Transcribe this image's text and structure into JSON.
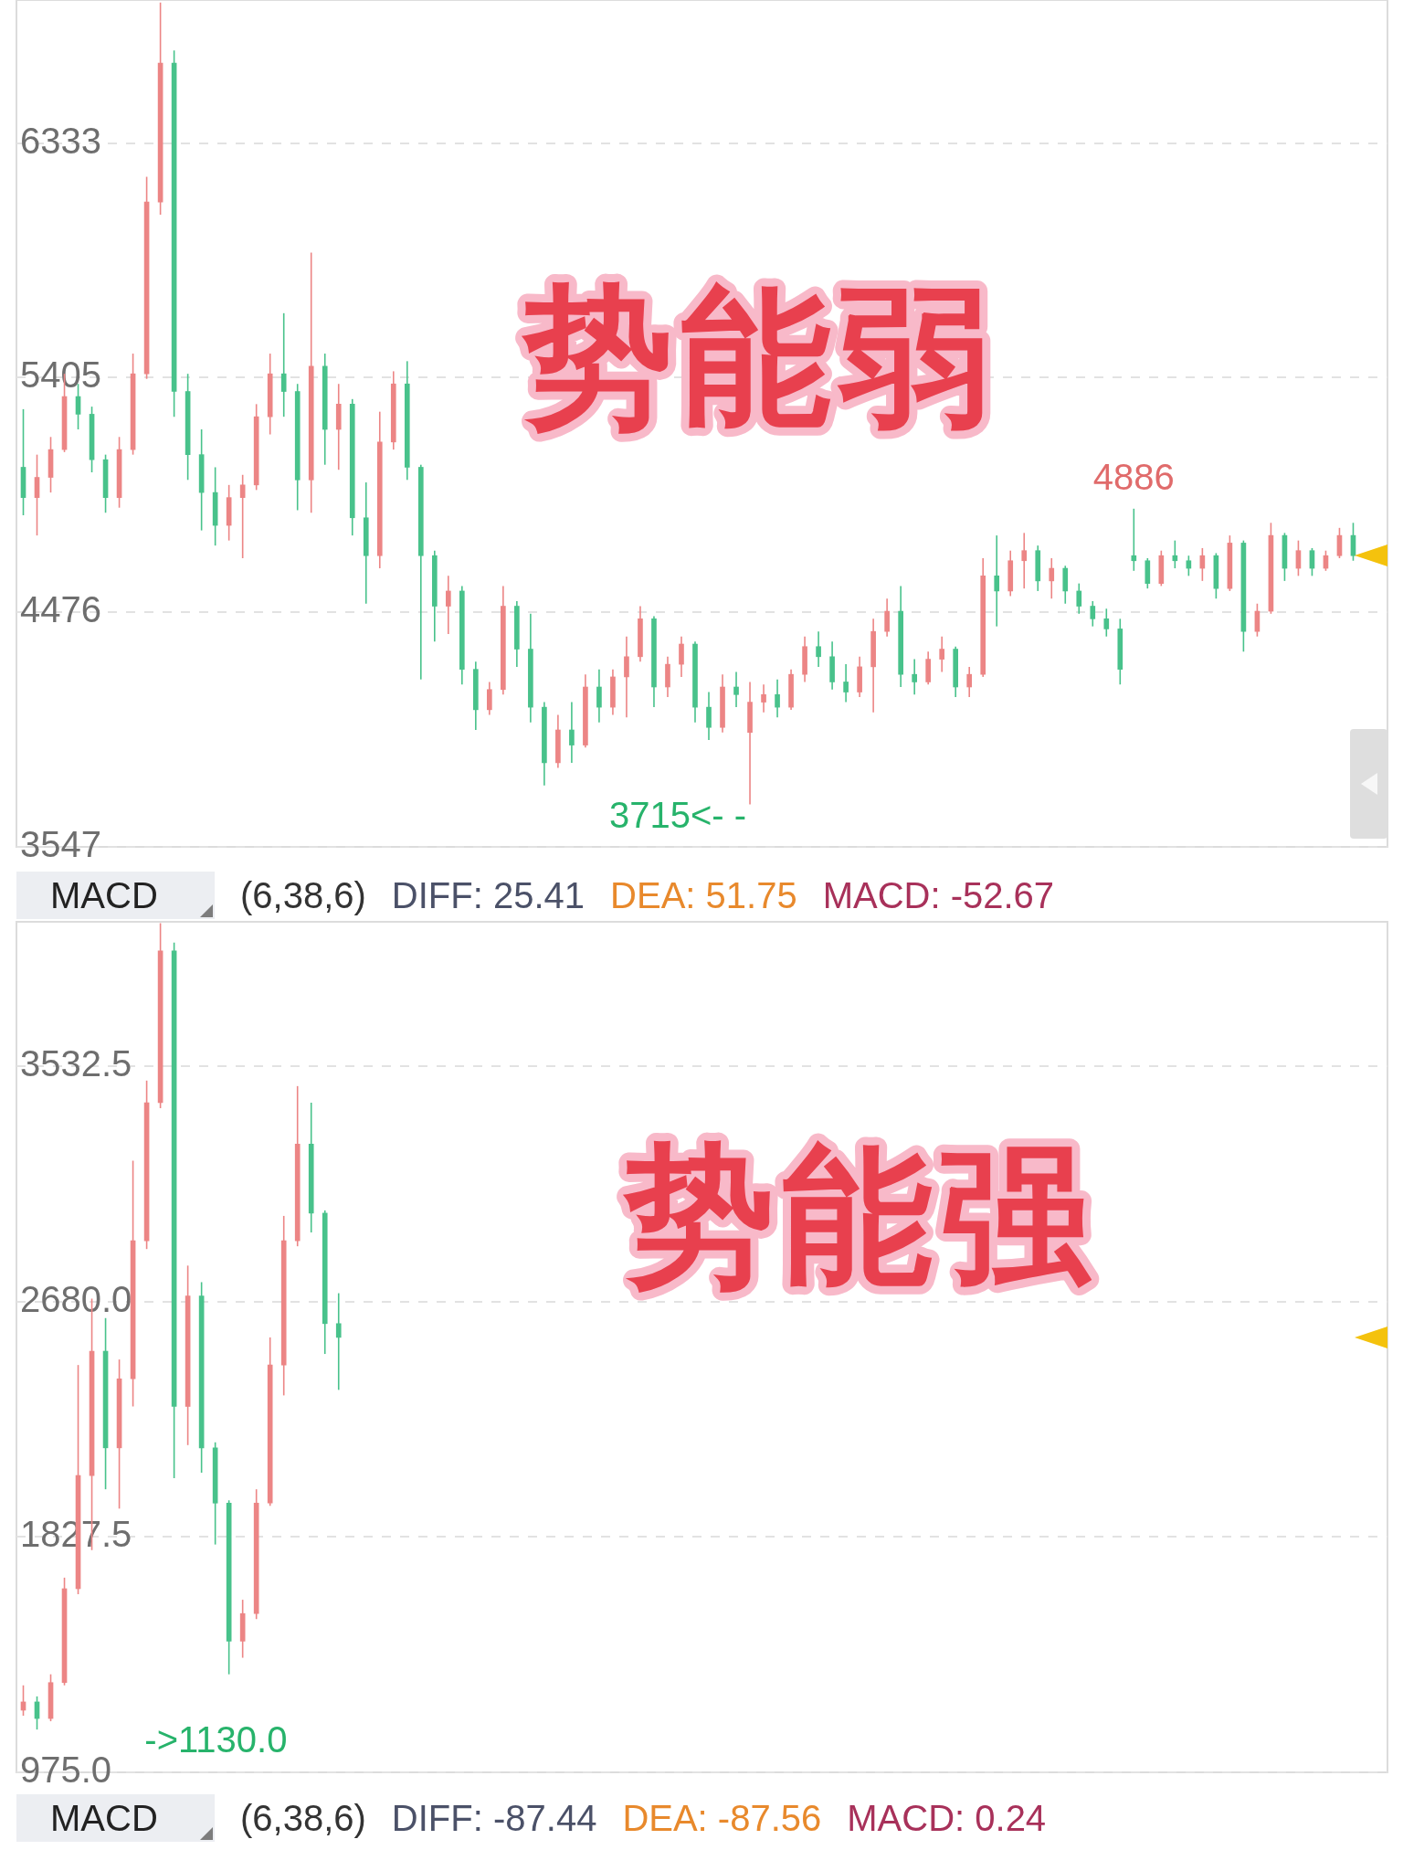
{
  "chart_data": [
    {
      "type": "candlestick",
      "title": "势能弱",
      "categories": [
        null,
        null,
        null,
        null,
        null,
        null,
        null,
        null,
        null,
        null,
        null,
        null,
        null,
        null,
        null,
        null,
        null,
        null,
        null,
        null,
        null,
        null,
        null,
        null,
        null,
        null,
        null,
        null,
        null,
        null,
        null,
        null,
        null,
        null,
        null,
        null,
        null,
        null,
        null,
        null,
        null,
        null,
        null,
        null,
        null,
        null,
        null,
        null,
        null,
        null,
        null,
        null,
        null,
        null,
        null,
        null,
        null,
        null,
        null,
        null,
        null,
        null,
        null,
        null,
        null,
        null,
        null,
        null,
        null,
        null,
        null,
        null,
        null,
        null,
        null,
        null,
        null,
        null,
        null,
        null,
        null,
        null,
        null,
        null,
        null,
        null,
        null,
        null,
        null,
        null,
        null,
        null,
        null,
        null,
        null,
        null,
        null,
        null,
        null,
        null
      ],
      "ohlc": [
        [
          5050,
          5280,
          4860,
          4930
        ],
        [
          4930,
          5100,
          4780,
          5010
        ],
        [
          5010,
          5170,
          4950,
          5120
        ],
        [
          5120,
          5420,
          5110,
          5330
        ],
        [
          5330,
          5380,
          5200,
          5260
        ],
        [
          5260,
          5290,
          5030,
          5080
        ],
        [
          5080,
          5100,
          4870,
          4930
        ],
        [
          4930,
          5170,
          4890,
          5120
        ],
        [
          5120,
          5500,
          5100,
          5420
        ],
        [
          5420,
          6200,
          5400,
          6100
        ],
        [
          6100,
          6890,
          6050,
          6650
        ],
        [
          6650,
          6700,
          5250,
          5350
        ],
        [
          5350,
          5420,
          5000,
          5100
        ],
        [
          5100,
          5200,
          4800,
          4950
        ],
        [
          4950,
          5050,
          4740,
          4820
        ],
        [
          4820,
          4980,
          4760,
          4930
        ],
        [
          4930,
          5020,
          4690,
          4980
        ],
        [
          4980,
          5300,
          4960,
          5250
        ],
        [
          5250,
          5500,
          5180,
          5420
        ],
        [
          5420,
          5660,
          5250,
          5350
        ],
        [
          5350,
          5380,
          4880,
          5000
        ],
        [
          5000,
          5900,
          4870,
          5450
        ],
        [
          5450,
          5500,
          5060,
          5200
        ],
        [
          5200,
          5380,
          5040,
          5300
        ],
        [
          5300,
          5320,
          4780,
          4850
        ],
        [
          4850,
          4990,
          4510,
          4700
        ],
        [
          4700,
          5270,
          4650,
          5150
        ],
        [
          5150,
          5430,
          5120,
          5380
        ],
        [
          5380,
          5470,
          5000,
          5050
        ],
        [
          5050,
          5060,
          4210,
          4700
        ],
        [
          4700,
          4720,
          4360,
          4500
        ],
        [
          4500,
          4620,
          4390,
          4560
        ],
        [
          4560,
          4580,
          4190,
          4250
        ],
        [
          4250,
          4280,
          4010,
          4090
        ],
        [
          4090,
          4200,
          4070,
          4170
        ],
        [
          4170,
          4580,
          4150,
          4500
        ],
        [
          4500,
          4520,
          4260,
          4330
        ],
        [
          4330,
          4470,
          4040,
          4100
        ],
        [
          4100,
          4120,
          3790,
          3880
        ],
        [
          3880,
          4070,
          3860,
          4010
        ],
        [
          4010,
          4120,
          3880,
          3950
        ],
        [
          3950,
          4230,
          3940,
          4180
        ],
        [
          4180,
          4250,
          4040,
          4100
        ],
        [
          4100,
          4250,
          4070,
          4220
        ],
        [
          4220,
          4380,
          4060,
          4300
        ],
        [
          4300,
          4500,
          4280,
          4450
        ],
        [
          4450,
          4460,
          4100,
          4180
        ],
        [
          4180,
          4300,
          4140,
          4270
        ],
        [
          4270,
          4380,
          4220,
          4350
        ],
        [
          4350,
          4360,
          4040,
          4100
        ],
        [
          4100,
          4160,
          3970,
          4020
        ],
        [
          4020,
          4230,
          4000,
          4180
        ],
        [
          4180,
          4240,
          4100,
          4150
        ],
        [
          4000,
          4200,
          3715,
          4120
        ],
        [
          4120,
          4190,
          4080,
          4150
        ],
        [
          4150,
          4210,
          4060,
          4100
        ],
        [
          4100,
          4250,
          4090,
          4230
        ],
        [
          4230,
          4380,
          4200,
          4340
        ],
        [
          4340,
          4400,
          4260,
          4300
        ],
        [
          4300,
          4360,
          4170,
          4200
        ],
        [
          4200,
          4270,
          4120,
          4160
        ],
        [
          4160,
          4300,
          4140,
          4260
        ],
        [
          4260,
          4450,
          4080,
          4400
        ],
        [
          4400,
          4530,
          4380,
          4480
        ],
        [
          4480,
          4580,
          4180,
          4230
        ],
        [
          4230,
          4290,
          4150,
          4200
        ],
        [
          4200,
          4320,
          4190,
          4290
        ],
        [
          4290,
          4380,
          4240,
          4330
        ],
        [
          4330,
          4340,
          4140,
          4180
        ],
        [
          4180,
          4260,
          4140,
          4230
        ],
        [
          4230,
          4690,
          4220,
          4620
        ],
        [
          4620,
          4780,
          4420,
          4560
        ],
        [
          4560,
          4720,
          4540,
          4680
        ],
        [
          4680,
          4790,
          4570,
          4720
        ],
        [
          4720,
          4740,
          4560,
          4600
        ],
        [
          4600,
          4690,
          4530,
          4650
        ],
        [
          4650,
          4660,
          4510,
          4560
        ],
        [
          4560,
          4590,
          4470,
          4500
        ],
        [
          4500,
          4520,
          4420,
          4450
        ],
        [
          4450,
          4490,
          4380,
          4410
        ],
        [
          4410,
          4450,
          4190,
          4250
        ],
        [
          4700,
          4886,
          4640,
          4680
        ],
        [
          4680,
          4690,
          4570,
          4590
        ],
        [
          4590,
          4720,
          4580,
          4700
        ],
        [
          4700,
          4760,
          4650,
          4680
        ],
        [
          4680,
          4700,
          4620,
          4650
        ],
        [
          4650,
          4730,
          4600,
          4700
        ],
        [
          4700,
          4710,
          4530,
          4570
        ],
        [
          4570,
          4780,
          4560,
          4750
        ],
        [
          4750,
          4760,
          4320,
          4400
        ],
        [
          4400,
          4510,
          4380,
          4480
        ],
        [
          4480,
          4830,
          4470,
          4780
        ],
        [
          4780,
          4790,
          4600,
          4650
        ],
        [
          4650,
          4760,
          4620,
          4720
        ],
        [
          4720,
          4730,
          4620,
          4650
        ],
        [
          4650,
          4720,
          4640,
          4700
        ],
        [
          4700,
          4810,
          4690,
          4780
        ],
        [
          4780,
          4830,
          4680,
          4700
        ],
        null,
        null
      ],
      "colors": [
        "#48c28b",
        "#ec8585",
        "#ec8585",
        "#ec8585",
        "#48c28b",
        "#48c28b",
        "#48c28b",
        "#ec8585",
        "#ec8585",
        "#ec8585",
        "#ec8585",
        "#48c28b",
        "#48c28b",
        "#48c28b",
        "#48c28b",
        "#ec8585",
        "#ec8585",
        "#ec8585",
        "#ec8585",
        "#48c28b",
        "#48c28b",
        "#ec8585",
        "#48c28b",
        "#ec8585",
        "#48c28b",
        "#48c28b",
        "#ec8585",
        "#ec8585",
        "#48c28b",
        "#48c28b",
        "#48c28b",
        "#ec8585",
        "#48c28b",
        "#48c28b",
        "#ec8585",
        "#ec8585",
        "#48c28b",
        "#48c28b",
        "#48c28b",
        "#ec8585",
        "#48c28b",
        "#ec8585",
        "#48c28b",
        "#ec8585",
        "#ec8585",
        "#ec8585",
        "#48c28b",
        "#ec8585",
        "#ec8585",
        "#48c28b",
        "#48c28b",
        "#ec8585",
        "#48c28b",
        "#ec8585",
        "#ec8585",
        "#48c28b",
        "#ec8585",
        "#ec8585",
        "#48c28b",
        "#48c28b",
        "#48c28b",
        "#ec8585",
        "#ec8585",
        "#ec8585",
        "#48c28b",
        "#48c28b",
        "#ec8585",
        "#ec8585",
        "#48c28b",
        "#ec8585",
        "#ec8585",
        "#48c28b",
        "#ec8585",
        "#ec8585",
        "#48c28b",
        "#ec8585",
        "#48c28b",
        "#48c28b",
        "#48c28b",
        "#48c28b",
        "#48c28b",
        "#48c28b",
        "#48c28b",
        "#ec8585",
        "#48c28b",
        "#48c28b",
        "#ec8585",
        "#48c28b",
        "#ec8585",
        "#48c28b",
        "#ec8585",
        "#ec8585",
        "#48c28b",
        "#ec8585",
        "#48c28b",
        "#ec8585",
        "#ec8585",
        "#48c28b",
        null,
        null
      ],
      "ylim": [
        3547,
        6900
      ],
      "yticks": [
        6333,
        5405,
        4476,
        3547
      ],
      "grid": "y",
      "tick_labels": "y",
      "annotations": [
        "MACD",
        "(6,38,6)",
        "DIFF: 25.41",
        "DEA: 51.75",
        "MACD: -52.67",
        {
          "text": "4886",
          "y": 4886
        },
        "3715<- -"
      ]
    },
    {
      "type": "candlestick",
      "title": "势能强",
      "categories": [
        null,
        null,
        null,
        null,
        null,
        null,
        null,
        null,
        null,
        null,
        null,
        null,
        null,
        null,
        null,
        null,
        null,
        null,
        null,
        null,
        null,
        null,
        null,
        null,
        null,
        null,
        null,
        null,
        null,
        null,
        null,
        null,
        null,
        null,
        null,
        null,
        null,
        null,
        null,
        null,
        null,
        null,
        null,
        null,
        null,
        null,
        null,
        null,
        null,
        null,
        null,
        null,
        null,
        null,
        null,
        null,
        null,
        null,
        null,
        null,
        null,
        null,
        null,
        null,
        null,
        null,
        null,
        null,
        null,
        null,
        null,
        null,
        null,
        null,
        null,
        null,
        null,
        null,
        null,
        null,
        null,
        null,
        null,
        null,
        null,
        null,
        null,
        null,
        null,
        null,
        null,
        null,
        null,
        null,
        null,
        null,
        null,
        null,
        null,
        null
      ],
      "ohlc": [
        [
          1200,
          1290,
          1180,
          1230
        ],
        [
          1230,
          1250,
          1130,
          1170
        ],
        [
          1170,
          1330,
          1160,
          1300
        ],
        [
          1300,
          1680,
          1290,
          1640
        ],
        [
          1640,
          2450,
          1620,
          2050
        ],
        [
          2050,
          2690,
          1780,
          2500
        ],
        [
          2500,
          2620,
          2000,
          2150
        ],
        [
          2150,
          2470,
          1930,
          2400
        ],
        [
          2400,
          3190,
          2300,
          2900
        ],
        [
          2900,
          3480,
          2870,
          3400
        ],
        [
          3400,
          4050,
          3380,
          3950
        ],
        [
          3950,
          3980,
          2040,
          2300
        ],
        [
          2300,
          2810,
          2160,
          2700
        ],
        [
          2700,
          2750,
          2060,
          2150
        ],
        [
          2150,
          2170,
          1800,
          1950
        ],
        [
          1950,
          1960,
          1330,
          1450
        ],
        [
          1450,
          1600,
          1390,
          1550
        ],
        [
          1550,
          2000,
          1530,
          1950
        ],
        [
          1950,
          2550,
          1940,
          2450
        ],
        [
          2450,
          2990,
          2340,
          2900
        ],
        [
          2900,
          3460,
          2880,
          3250
        ],
        [
          3250,
          3400,
          2930,
          3000
        ],
        [
          3000,
          3010,
          2490,
          2600
        ],
        [
          2600,
          2710,
          2360,
          2550
        ],
        null,
        null,
        null,
        null,
        null,
        null,
        null,
        null,
        null,
        null,
        null,
        null,
        null,
        null,
        null,
        null,
        null,
        null,
        null,
        null,
        null,
        null,
        null,
        null,
        null,
        null,
        null,
        null,
        null,
        null,
        null,
        null,
        null,
        null,
        null,
        null,
        null,
        null,
        null,
        null,
        null,
        null,
        null,
        null,
        null,
        null,
        null,
        null,
        null,
        null,
        null,
        null,
        null,
        null,
        null,
        null,
        null,
        null,
        null,
        null,
        null,
        null,
        null,
        null,
        null,
        null,
        null,
        null,
        null,
        null,
        null,
        null,
        null,
        null,
        null,
        null
      ],
      "colors": [
        "#ec8585",
        "#48c28b",
        "#ec8585",
        "#ec8585",
        "#ec8585",
        "#ec8585",
        "#48c28b",
        "#ec8585",
        "#ec8585",
        "#ec8585",
        "#ec8585",
        "#48c28b",
        "#ec8585",
        "#48c28b",
        "#48c28b",
        "#48c28b",
        "#ec8585",
        "#ec8585",
        "#ec8585",
        "#ec8585",
        "#ec8585",
        "#48c28b",
        "#48c28b",
        "#48c28b",
        null,
        null,
        null,
        null,
        null,
        null,
        null,
        null,
        null,
        null,
        null,
        null,
        null,
        null,
        null,
        null,
        null,
        null,
        null,
        null,
        null,
        null,
        null,
        null,
        null,
        null,
        null,
        null,
        null,
        null,
        null,
        null,
        null,
        null,
        null,
        null,
        null,
        null,
        null,
        null,
        null,
        null,
        null,
        null,
        null,
        null,
        null,
        null,
        null,
        null,
        null,
        null,
        null,
        null,
        null,
        null,
        null,
        null,
        null,
        null,
        null,
        null,
        null,
        null,
        null,
        null,
        null,
        null,
        null,
        null,
        null,
        null,
        null,
        null,
        null,
        null
      ],
      "ylim": [
        975,
        4055
      ],
      "yticks": [
        3532.5,
        {
          "value": 2680,
          "label": "2680.0"
        },
        1827.5,
        {
          "value": 975,
          "label": "975.0"
        }
      ],
      "grid": "y",
      "tick_labels": "y",
      "annotations": [
        "MACD",
        "(6,38,6)",
        "DIFF: -87.44",
        "DEA: -87.56",
        "MACD: 0.24",
        "->1130.0"
      ]
    }
  ]
}
